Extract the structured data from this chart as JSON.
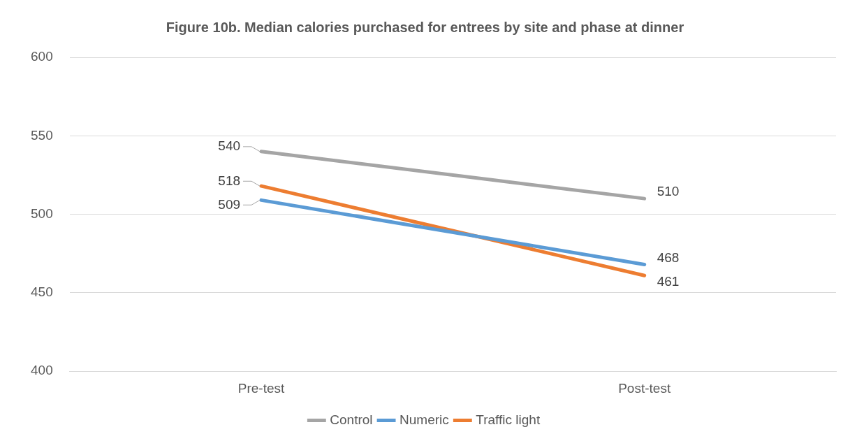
{
  "chart_data": {
    "type": "line",
    "title": "Figure 10b. Median calories purchased for entrees by site and phase at dinner",
    "categories": [
      "Pre-test",
      "Post-test"
    ],
    "series": [
      {
        "name": "Control",
        "color": "#a5a5a5",
        "values": [
          540,
          510
        ]
      },
      {
        "name": "Numeric",
        "color": "#5b9bd5",
        "values": [
          509,
          468
        ]
      },
      {
        "name": "Traffic light",
        "color": "#ed7d31",
        "values": [
          518,
          461
        ]
      }
    ],
    "ylim": [
      400,
      600
    ],
    "yticks": [
      400,
      450,
      500,
      550,
      600
    ],
    "grid": "y",
    "legend": "bottom",
    "data_labels": true,
    "marker": "none",
    "line_style": "solid"
  }
}
